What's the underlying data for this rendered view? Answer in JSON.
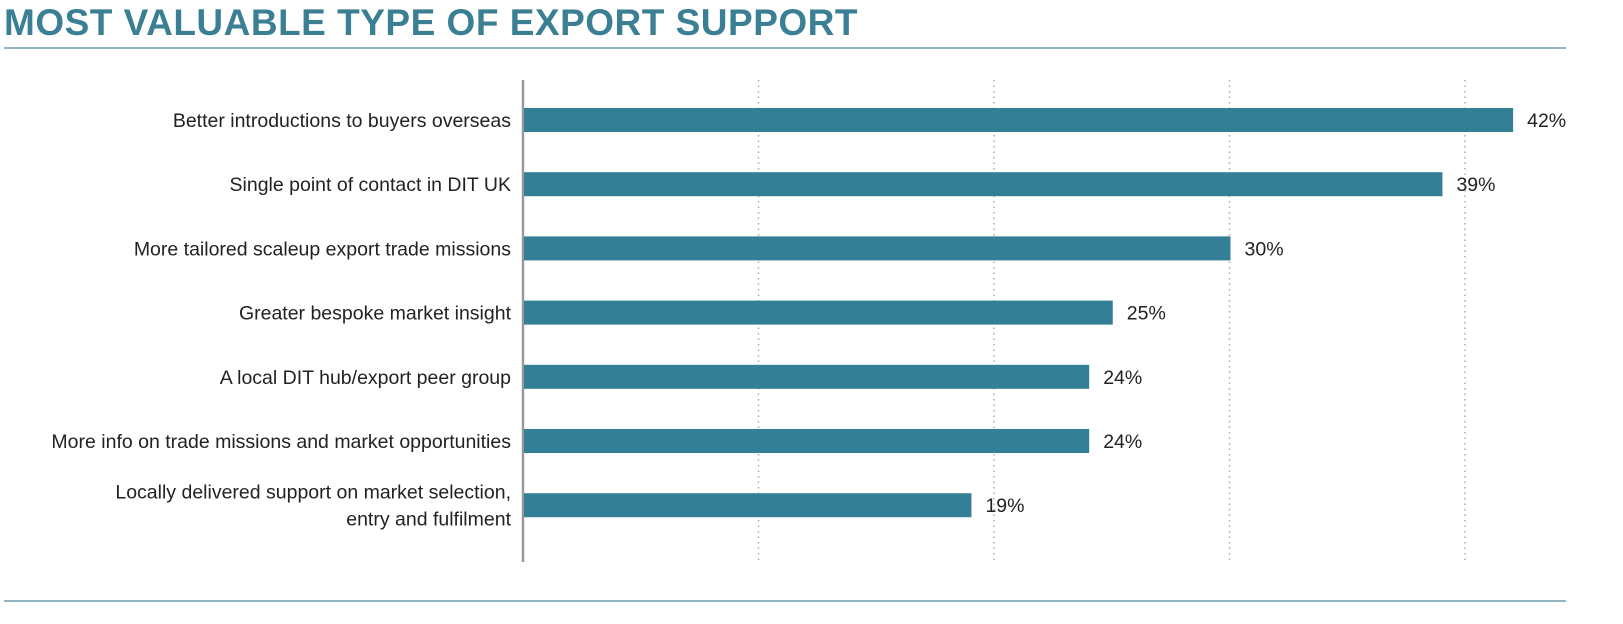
{
  "chart_data": {
    "type": "bar",
    "orientation": "horizontal",
    "title": "MOST VALUABLE TYPE OF EXPORT SUPPORT",
    "categories": [
      [
        "Better introductions to buyers overseas"
      ],
      [
        "Single point of contact in DIT UK"
      ],
      [
        "More tailored scaleup export trade missions"
      ],
      [
        "Greater bespoke market insight"
      ],
      [
        "A local DIT hub/export peer group"
      ],
      [
        "More info on trade missions and market opportunities"
      ],
      [
        "Locally delivered support on market selection,",
        "entry and fulfilment"
      ]
    ],
    "values": [
      42,
      39,
      30,
      25,
      24,
      24,
      19
    ],
    "value_labels": [
      "42%",
      "39%",
      "30%",
      "25%",
      "24%",
      "24%",
      "19%"
    ],
    "xlim": [
      0,
      44
    ],
    "gridlines": [
      10,
      20,
      30,
      40
    ],
    "grid": true,
    "bar_color": "#337f96",
    "title_color": "#3a7f94"
  }
}
